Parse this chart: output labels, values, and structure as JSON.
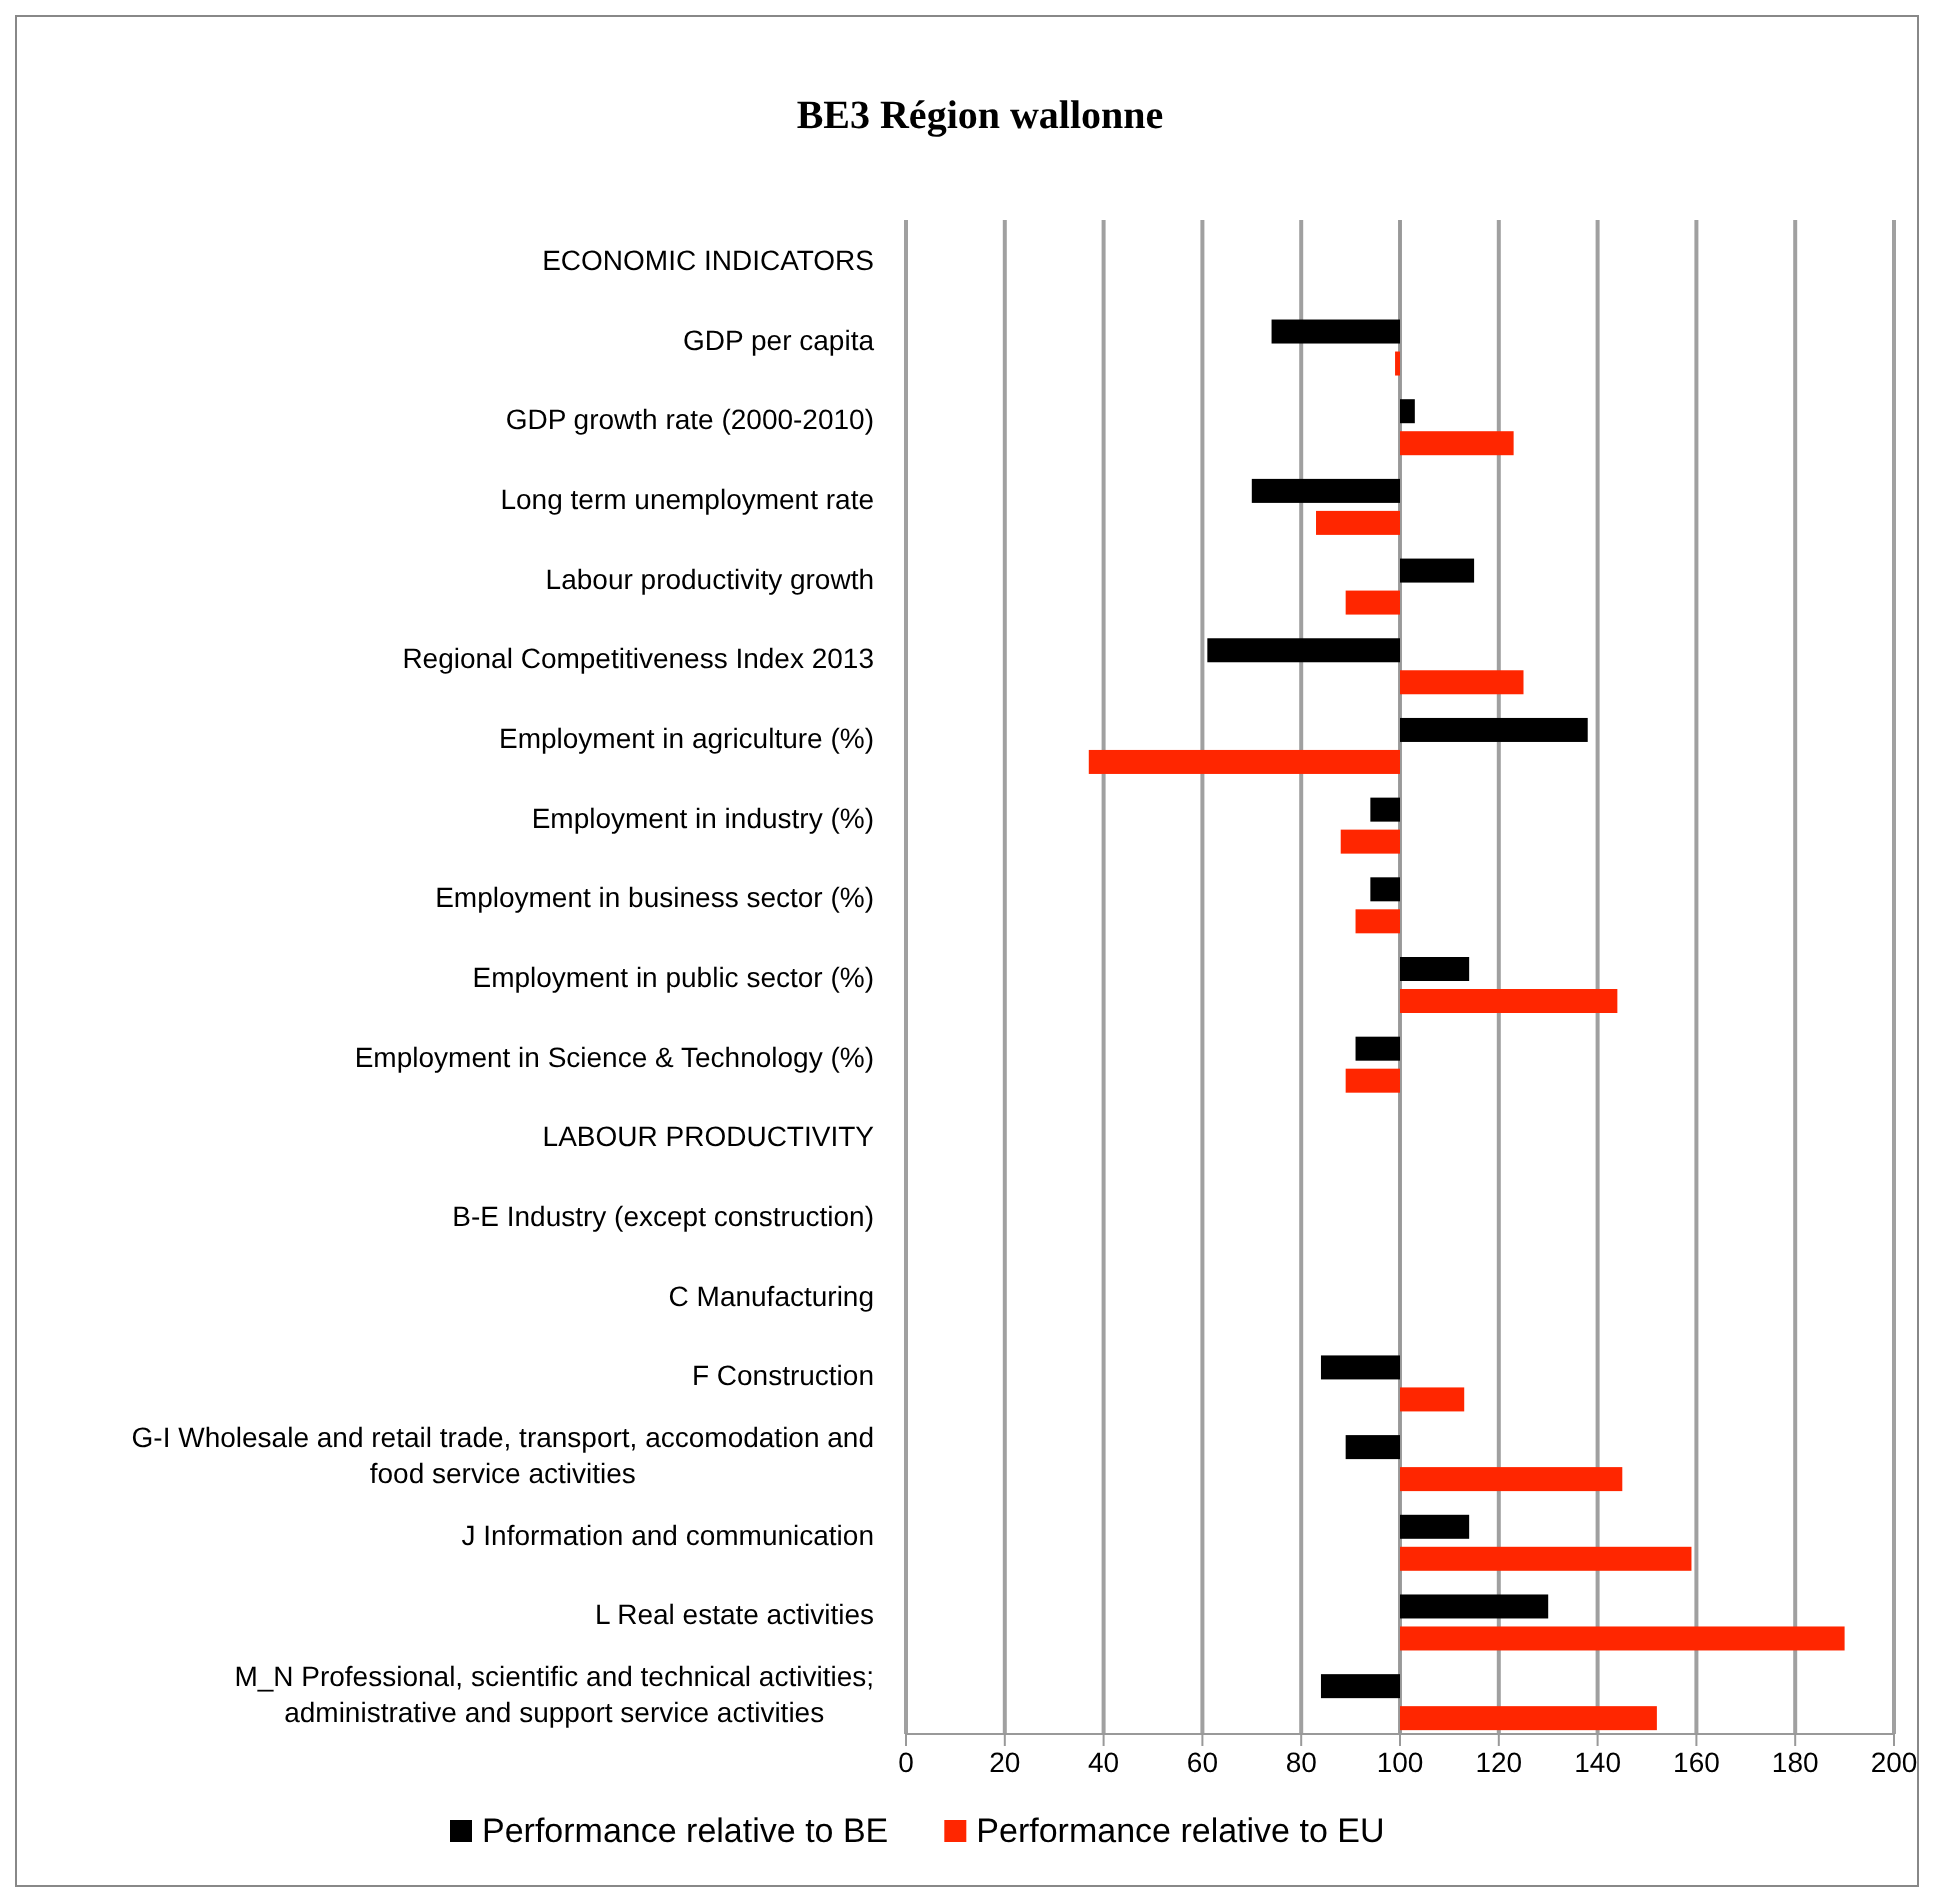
{
  "chart_data": {
    "type": "bar",
    "orientation": "horizontal",
    "title": "BE3 Région wallonne",
    "categories": [
      "ECONOMIC INDICATORS",
      "GDP per capita",
      "GDP growth rate (2000-2010)",
      "Long term unemployment rate",
      "Labour productivity growth",
      "Regional Competitiveness Index 2013",
      "Employment in agriculture (%)",
      "Employment in industry (%)",
      "Employment in business sector (%)",
      "Employment in public sector (%)",
      "Employment in Science & Technology (%)",
      "LABOUR PRODUCTIVITY",
      "B-E Industry (except construction)",
      "C Manufacturing",
      "F Construction",
      "G-I Wholesale and retail trade, transport, accomodation and food service activities",
      "J Information and communication",
      "L Real estate activities",
      "M_N Professional, scientific and technical activities; administrative and support service activities"
    ],
    "ref_lines": [
      {
        "axis": "x",
        "value": 100,
        "color": "#999999"
      }
    ],
    "series": [
      {
        "name": "Performance relative to BE",
        "color": "#000000",
        "base": [
          null,
          100,
          100,
          100,
          100,
          100,
          100,
          100,
          100,
          100,
          100,
          null,
          null,
          null,
          100,
          100,
          100,
          100,
          100
        ],
        "values": [
          null,
          -26,
          3,
          -30,
          15,
          -39,
          38,
          -6,
          -6,
          14,
          -9,
          null,
          null,
          null,
          -16,
          -11,
          14,
          30,
          -16
        ]
      },
      {
        "name": "Performance relative to EU",
        "color": "#ff2600",
        "base": [
          null,
          100,
          100,
          100,
          100,
          100,
          100,
          100,
          100,
          100,
          100,
          null,
          null,
          null,
          100,
          100,
          100,
          100,
          100
        ],
        "values": [
          null,
          -1,
          23,
          -17,
          -11,
          25,
          -63,
          -12,
          -9,
          44,
          -11,
          null,
          null,
          null,
          13,
          45,
          59,
          90,
          52
        ]
      }
    ],
    "xlim": [
      0,
      200
    ],
    "xticks": [
      0,
      20,
      40,
      60,
      80,
      100,
      120,
      140,
      160,
      180,
      200
    ],
    "grid": "x",
    "legend": "bottom"
  }
}
